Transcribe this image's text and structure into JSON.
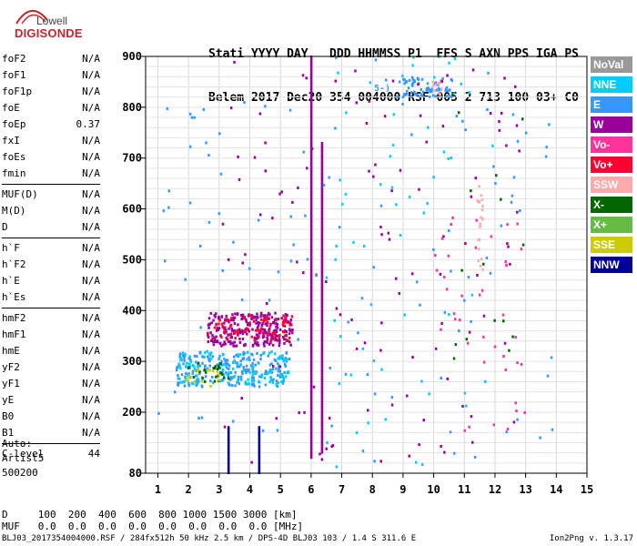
{
  "logo": {
    "line1": "Lowell",
    "line2": "DIGISONDE"
  },
  "header": {
    "row1": "Stati YYYY DAY   DDD HHMMSS P1  FFS S AXN PPS IGA PS",
    "row2": "Belem 2017 Dec20 354 004000 RSF 005 2 713 100 03+ C0"
  },
  "params": {
    "group1": [
      {
        "label": "foF2",
        "value": "N/A"
      },
      {
        "label": "foF1",
        "value": "N/A"
      },
      {
        "label": "foF1p",
        "value": "N/A"
      },
      {
        "label": "foE",
        "value": "N/A"
      },
      {
        "label": "foEp",
        "value": "0.37"
      },
      {
        "label": "fxI",
        "value": "N/A"
      },
      {
        "label": "foEs",
        "value": "N/A"
      },
      {
        "label": "fmin",
        "value": "N/A"
      }
    ],
    "group2": [
      {
        "label": "MUF(D)",
        "value": "N/A"
      },
      {
        "label": "M(D)",
        "value": "N/A"
      },
      {
        "label": "D",
        "value": "N/A"
      }
    ],
    "group3": [
      {
        "label": "h`F",
        "value": "N/A"
      },
      {
        "label": "h`F2",
        "value": "N/A"
      },
      {
        "label": "h`E",
        "value": "N/A"
      },
      {
        "label": "h`Es",
        "value": "N/A"
      }
    ],
    "group4": [
      {
        "label": "hmF2",
        "value": "N/A"
      },
      {
        "label": "hmF1",
        "value": "N/A"
      },
      {
        "label": "hmE",
        "value": "N/A"
      },
      {
        "label": "yF2",
        "value": "N/A"
      },
      {
        "label": "yF1",
        "value": "N/A"
      },
      {
        "label": "yE",
        "value": "N/A"
      },
      {
        "label": "B0",
        "value": "N/A"
      },
      {
        "label": "B1",
        "value": "N/A"
      }
    ],
    "group5": [
      {
        "label": "C-level",
        "value": "44"
      }
    ]
  },
  "auto": {
    "line1": "Auto:",
    "line2": "Artist5",
    "line3": "500200"
  },
  "legend": [
    {
      "label": "NoVal",
      "color": "#999999"
    },
    {
      "label": "NNE",
      "color": "#00ccff"
    },
    {
      "label": "E",
      "color": "#3399ff"
    },
    {
      "label": "W",
      "color": "#990099"
    },
    {
      "label": "Vo-",
      "color": "#ff3399"
    },
    {
      "label": "Vo+",
      "color": "#ff0033"
    },
    {
      "label": "SSW",
      "color": "#ffaaaa"
    },
    {
      "label": "X-",
      "color": "#006600"
    },
    {
      "label": "X+",
      "color": "#66bb44"
    },
    {
      "label": "SSE",
      "color": "#cccc00"
    },
    {
      "label": "NNW",
      "color": "#000099"
    }
  ],
  "bottom": {
    "d_row": "D     100  200  400  600  800 1000 1500 3000 [km]",
    "muf_row": "MUF   0.0  0.0  0.0  0.0  0.0  0.0  0.0  0.0 [MHz]"
  },
  "footer": {
    "left": "BLJ03_2017354004000.RSF / 284fx512h 50 kHz 2.5 km / DPS-4D BLJ03 103 / 1.4 S 311.6 E",
    "right": "Ion2Png v. 1.3.17"
  },
  "annotation": "5-)",
  "chart_data": {
    "type": "scatter",
    "title": "",
    "xlabel": "",
    "ylabel": "",
    "xlim": [
      0.6,
      15
    ],
    "ylim": [
      80,
      900
    ],
    "xticks": [
      1,
      2,
      3,
      4,
      5,
      6,
      7,
      8,
      9,
      10,
      11,
      12,
      13,
      14,
      15
    ],
    "yticks": [
      80,
      200,
      300,
      400,
      500,
      600,
      700,
      800,
      900
    ],
    "grid": true,
    "vertical_traces": [
      {
        "x": 3.3,
        "y0": 80,
        "y1": 170,
        "color": "#000099"
      },
      {
        "x": 4.3,
        "y0": 80,
        "y1": 170,
        "color": "#000099"
      },
      {
        "x": 6.0,
        "y0": 110,
        "y1": 900,
        "color": "#990099"
      },
      {
        "x": 6.35,
        "y0": 120,
        "y1": 730,
        "color": "#990099"
      }
    ],
    "clusters": [
      {
        "name": "F-trace band",
        "color": "#990099",
        "x0": 2.6,
        "x1": 5.4,
        "y0": 330,
        "y1": 395,
        "n": 260
      },
      {
        "name": "F-trace band",
        "color": "#ff0033",
        "x0": 2.6,
        "x1": 5.4,
        "y0": 340,
        "y1": 390,
        "n": 80
      },
      {
        "name": "lower band",
        "color": "#3399ff",
        "x0": 1.6,
        "x1": 5.3,
        "y0": 250,
        "y1": 320,
        "n": 220
      },
      {
        "name": "lower band",
        "color": "#00ccff",
        "x0": 1.6,
        "x1": 5.3,
        "y0": 255,
        "y1": 320,
        "n": 120
      },
      {
        "name": "lower band",
        "color": "#006600",
        "x0": 1.8,
        "x1": 3.3,
        "y0": 260,
        "y1": 300,
        "n": 25
      },
      {
        "name": "lower band",
        "color": "#cccc00",
        "x0": 1.9,
        "x1": 3.0,
        "y0": 250,
        "y1": 290,
        "n": 15
      },
      {
        "name": "high echo",
        "color": "#3399ff",
        "x0": 8.8,
        "x1": 10.6,
        "y0": 820,
        "y1": 860,
        "n": 70
      },
      {
        "name": "high echo",
        "color": "#ffaaaa",
        "x0": 9.9,
        "x1": 10.3,
        "y0": 825,
        "y1": 850,
        "n": 10
      },
      {
        "name": "scatter",
        "color": "#990099",
        "x0": 3.0,
        "x1": 13.0,
        "y0": 100,
        "y1": 900,
        "n": 120
      },
      {
        "name": "scatter",
        "color": "#3399ff",
        "x0": 1.0,
        "x1": 14.0,
        "y0": 90,
        "y1": 900,
        "n": 110
      },
      {
        "name": "scatter",
        "color": "#00ccff",
        "x0": 6.5,
        "x1": 12.0,
        "y0": 90,
        "y1": 900,
        "n": 60
      },
      {
        "name": "scatter",
        "color": "#ff3399",
        "x0": 10.0,
        "x1": 13.0,
        "y0": 150,
        "y1": 600,
        "n": 40
      },
      {
        "name": "scatter",
        "color": "#006600",
        "x0": 10.5,
        "x1": 13.0,
        "y0": 300,
        "y1": 800,
        "n": 15
      },
      {
        "name": "scatter",
        "color": "#ffaaaa",
        "x0": 11.4,
        "x1": 11.6,
        "y0": 480,
        "y1": 650,
        "n": 20
      }
    ]
  }
}
